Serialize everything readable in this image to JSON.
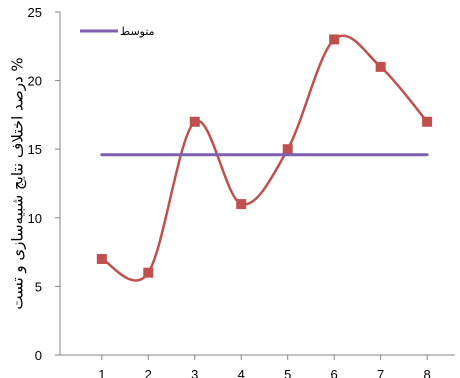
{
  "chart_data": {
    "type": "line",
    "x": [
      1,
      2,
      3,
      4,
      5,
      6,
      7,
      8
    ],
    "xticks": [
      "1",
      "2",
      "3",
      "4",
      "5",
      "6",
      "7",
      "8"
    ],
    "yticks": [
      "0",
      "5",
      "10",
      "15",
      "20",
      "25"
    ],
    "ylim": [
      0,
      25
    ],
    "xlim": [
      0.1,
      8.6
    ],
    "ylabel": "درصد اختلاف نتایج شبیه‌سازی و تست %",
    "xlabel": "",
    "grid": false,
    "legend_position": "top-left",
    "series": [
      {
        "name": "",
        "color": "#c0504d",
        "marker": "square",
        "smooth": true,
        "values": [
          7,
          6,
          17,
          11,
          15,
          23,
          21,
          17
        ]
      },
      {
        "name": "متوسط",
        "color": "#7f5fb0",
        "marker": "none",
        "smooth": false,
        "values": [
          14.6,
          14.6,
          14.6,
          14.6,
          14.6,
          14.6,
          14.6,
          14.6
        ]
      }
    ]
  }
}
